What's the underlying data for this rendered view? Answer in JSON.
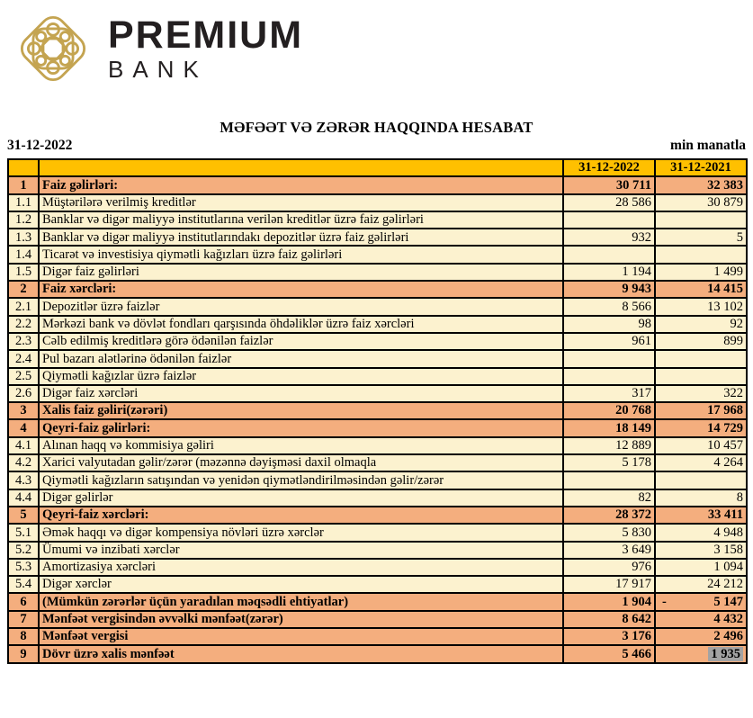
{
  "logo": {
    "brand": "PREMIUM",
    "sub": "BANK",
    "emblem_color": "#C4A451",
    "text_color": "#231f20"
  },
  "report": {
    "title": "MƏFƏƏT VƏ ZƏRƏR HAQQINDA HESABAT",
    "date": "31-12-2022",
    "unit": "min manatla"
  },
  "table": {
    "colors": {
      "header_bg": "#FFC000",
      "section_row_bg": "#F4AE7E",
      "data_row_bg": "#FCF2CF",
      "border": "#000000",
      "highlight_bg": "#A3A3A3"
    },
    "columns": {
      "num": "",
      "label": "",
      "col2022": "31-12-2022",
      "col2021": "31-12-2021"
    },
    "rows": [
      {
        "num": "1",
        "label": "Faiz gəlirləri:",
        "v2022": "30 711",
        "v2021": "32 383",
        "section": true
      },
      {
        "num": "1.1",
        "label": "Müştərilərə verilmiş kreditlər",
        "v2022": "28 586",
        "v2021": "30 879"
      },
      {
        "num": "1.2",
        "label": "Banklar və digər maliyyə institutlarına verilən kreditlər üzrə faiz gəlirləri",
        "v2022": "",
        "v2021": ""
      },
      {
        "num": "1.3",
        "label": "Banklar və digər maliyyə institutlarındakı depozitlər üzrə faiz gəlirləri",
        "v2022": "932",
        "v2021": "5"
      },
      {
        "num": "1.4",
        "label": "Ticarət və investisiya qiymətli kağızları üzrə faiz gəlirləri",
        "v2022": "",
        "v2021": ""
      },
      {
        "num": "1.5",
        "label": "Digər faiz gəlirləri",
        "v2022": "1 194",
        "v2021": "1 499"
      },
      {
        "num": "2",
        "label": "Faiz xərcləri:",
        "v2022": "9 943",
        "v2021": "14 415",
        "section": true
      },
      {
        "num": "2.1",
        "label": "Depozitlər üzrə faizlər",
        "v2022": "8 566",
        "v2021": "13 102"
      },
      {
        "num": "2.2",
        "label": "Mərkəzi bank və dövlət fondları qarşısında öhdəliklər üzrə faiz xərcləri",
        "v2022": "98",
        "v2021": "92"
      },
      {
        "num": "2.3",
        "label": "Cəlb edilmiş kreditlərə görə ödənilən faizlər",
        "v2022": "961",
        "v2021": "899"
      },
      {
        "num": "2.4",
        "label": "Pul bazarı alətlərinə ödənilən faizlər",
        "v2022": "",
        "v2021": ""
      },
      {
        "num": "2.5",
        "label": "Qiymətli kağızlar üzrə faizlər",
        "v2022": "",
        "v2021": ""
      },
      {
        "num": "2.6",
        "label": "Digər faiz xərcləri",
        "v2022": "317",
        "v2021": "322"
      },
      {
        "num": "3",
        "label": "Xalis faiz gəliri(zərəri)",
        "v2022": "20 768",
        "v2021": "17 968",
        "section": true
      },
      {
        "num": "4",
        "label": "Qeyri-faiz gəlirləri:",
        "v2022": "18 149",
        "v2021": "14 729",
        "section": true
      },
      {
        "num": "4.1",
        "label": "Alınan haqq və kommisiya gəliri",
        "v2022": "12 889",
        "v2021": "10 457"
      },
      {
        "num": "4.2",
        "label": "Xarici valyutadan gəlir/zərər (məzənnə dəyişməsi daxil olmaqla",
        "v2022": "5 178",
        "v2021": "4 264"
      },
      {
        "num": "4.3",
        "label": "Qiymətli kağızların satışından və yenidən qiymətləndirilməsindən gəlir/zərər",
        "v2022": "",
        "v2021": ""
      },
      {
        "num": "4.4",
        "label": "Digər gəlirlər",
        "v2022": "82",
        "v2021": "8"
      },
      {
        "num": "5",
        "label": "Qeyri-faiz xərcləri:",
        "v2022": "28 372",
        "v2021": "33 411",
        "section": true
      },
      {
        "num": "5.1",
        "label": "Əmək haqqı və digər kompensiya növləri üzrə xərclər",
        "v2022": "5 830",
        "v2021": "4 948"
      },
      {
        "num": "5.2",
        "label": "Ümumi və inzibati xərclər",
        "v2022": "3 649",
        "v2021": "3 158"
      },
      {
        "num": "5.3",
        "label": "Amortizasiya xərcləri",
        "v2022": "976",
        "v2021": "1 094"
      },
      {
        "num": "5.4",
        "label": "Digər xərclər",
        "v2022": "17 917",
        "v2021": "24 212"
      },
      {
        "num": "6",
        "label": "(Mümkün zərərlər üçün yaradılan məqsədli ehtiyatlar)",
        "v2022": "1 904",
        "v2021": "5 147",
        "section": true,
        "negative2021": true
      },
      {
        "num": "7",
        "label": "Mənfəət vergisindən əvvəlki mənfəət(zərər)",
        "v2022": "8 642",
        "v2021": "4 432",
        "section": true
      },
      {
        "num": "8",
        "label": "Mənfəət vergisi",
        "v2022": "3 176",
        "v2021": "2 496",
        "section": true
      },
      {
        "num": "9",
        "label": "Dövr üzrə xalis mənfəət",
        "v2022": "5 466",
        "v2021": "1 935",
        "section": true,
        "highlight2021": true
      }
    ]
  }
}
